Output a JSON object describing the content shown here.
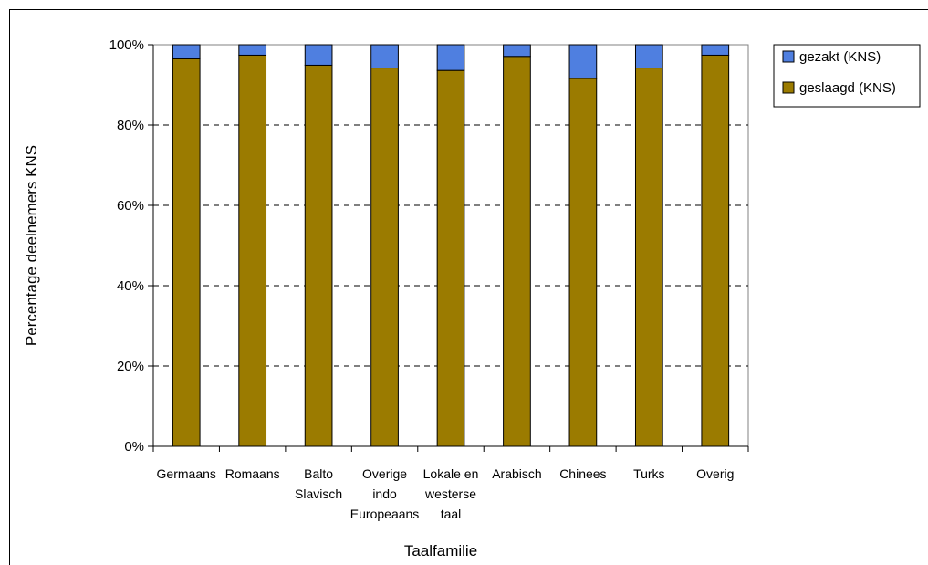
{
  "chart_data": {
    "type": "bar",
    "stacked": true,
    "percent_stacked": true,
    "title": "",
    "xlabel": "Taalfamilie",
    "ylabel": "Percentage deelnemers KNS",
    "y_tick_labels": [
      "0%",
      "20%",
      "40%",
      "60%",
      "80%",
      "100%"
    ],
    "ylim": [
      0,
      100
    ],
    "grid": "horizontal dashed",
    "legend_position": "right",
    "categories": [
      "Germaans",
      "Romaans",
      "Balto Slavisch",
      "Overige indo Europeaans",
      "Lokale en westerse taal",
      "Arabisch",
      "Chinees",
      "Turks",
      "Overig"
    ],
    "category_lines": [
      [
        "Germaans"
      ],
      [
        "Romaans"
      ],
      [
        "Balto",
        "Slavisch"
      ],
      [
        "Overige",
        "indo",
        "Europeaans"
      ],
      [
        "Lokale en",
        "westerse",
        "taal"
      ],
      [
        "Arabisch"
      ],
      [
        "Chinees"
      ],
      [
        "Turks"
      ],
      [
        "Overig"
      ]
    ],
    "series": [
      {
        "name": "geslaagd (KNS)",
        "color": "#9b7b00",
        "values": [
          96.5,
          97.4,
          94.9,
          94.2,
          93.6,
          97.1,
          91.6,
          94.2,
          97.4
        ]
      },
      {
        "name": "gezakt (KNS)",
        "color": "#4f7fe0",
        "values": [
          3.5,
          2.6,
          5.1,
          5.8,
          6.4,
          2.9,
          8.4,
          5.8,
          2.6
        ]
      }
    ],
    "legend_order": [
      "gezakt (KNS)",
      "geslaagd (KNS)"
    ],
    "colors": {
      "plot_background": "#ffffff",
      "page_background": "#ffffff",
      "plot_border": "#808080",
      "gridline": "#000000"
    }
  }
}
